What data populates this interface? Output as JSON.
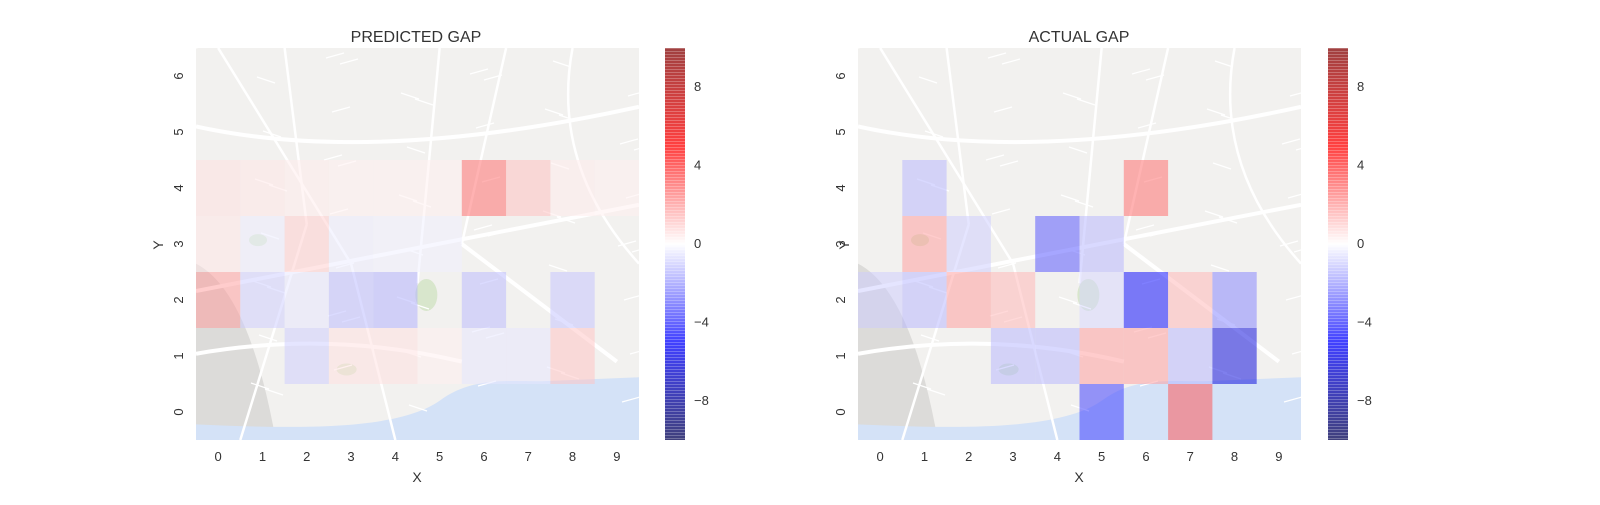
{
  "chart_data": [
    {
      "type": "heatmap",
      "title": "PREDICTED GAP",
      "xlabel": "X",
      "ylabel": "Y",
      "x_ticks": [
        "0",
        "1",
        "2",
        "3",
        "4",
        "5",
        "6",
        "7",
        "8",
        "9"
      ],
      "y_ticks": [
        "0",
        "1",
        "2",
        "3",
        "4",
        "5",
        "6"
      ],
      "xlim": [
        -0.5,
        9.5
      ],
      "ylim": [
        -0.5,
        6.5
      ],
      "colorbar": {
        "colormap": "seismic",
        "range": [
          -10,
          10
        ],
        "ticks": [
          8,
          4,
          0,
          -4,
          -8
        ],
        "tick_labels": [
          "8",
          "4",
          "0",
          "−4",
          "−8"
        ]
      },
      "background": "street map",
      "cells": [
        {
          "x": 0,
          "y": 4,
          "v": 0.6
        },
        {
          "x": 1,
          "y": 4,
          "v": 0.5
        },
        {
          "x": 2,
          "y": 4,
          "v": 0.4
        },
        {
          "x": 3,
          "y": 4,
          "v": 0.3
        },
        {
          "x": 4,
          "y": 4,
          "v": 0.3
        },
        {
          "x": 5,
          "y": 4,
          "v": 0.3
        },
        {
          "x": 6,
          "y": 4,
          "v": 3.0
        },
        {
          "x": 7,
          "y": 4,
          "v": 1.3
        },
        {
          "x": 8,
          "y": 4,
          "v": 0.4
        },
        {
          "x": 9,
          "y": 4,
          "v": 0.3
        },
        {
          "x": 0,
          "y": 3,
          "v": 0.5
        },
        {
          "x": 1,
          "y": 3,
          "v": -0.4
        },
        {
          "x": 2,
          "y": 3,
          "v": 1.0
        },
        {
          "x": 3,
          "y": 3,
          "v": -0.4
        },
        {
          "x": 4,
          "y": 3,
          "v": -0.3
        },
        {
          "x": 5,
          "y": 3,
          "v": -0.3
        },
        {
          "x": 0,
          "y": 2,
          "v": 2.0
        },
        {
          "x": 1,
          "y": 2,
          "v": -1.0
        },
        {
          "x": 2,
          "y": 2,
          "v": -0.5
        },
        {
          "x": 3,
          "y": 2,
          "v": -1.4
        },
        {
          "x": 4,
          "y": 2,
          "v": -1.6
        },
        {
          "x": 6,
          "y": 2,
          "v": -1.4
        },
        {
          "x": 8,
          "y": 2,
          "v": -1.2
        },
        {
          "x": 2,
          "y": 1,
          "v": -1.0
        },
        {
          "x": 3,
          "y": 1,
          "v": 0.6
        },
        {
          "x": 4,
          "y": 1,
          "v": 0.6
        },
        {
          "x": 5,
          "y": 1,
          "v": 0.3
        },
        {
          "x": 6,
          "y": 1,
          "v": -0.5
        },
        {
          "x": 7,
          "y": 1,
          "v": -0.5
        },
        {
          "x": 8,
          "y": 1,
          "v": 1.2
        }
      ]
    },
    {
      "type": "heatmap",
      "title": "ACTUAL GAP",
      "xlabel": "X",
      "ylabel": "Y",
      "x_ticks": [
        "0",
        "1",
        "2",
        "3",
        "4",
        "5",
        "6",
        "7",
        "8",
        "9"
      ],
      "y_ticks": [
        "0",
        "1",
        "2",
        "3",
        "4",
        "5",
        "6"
      ],
      "xlim": [
        -0.5,
        9.5
      ],
      "ylim": [
        -0.5,
        6.5
      ],
      "colorbar": {
        "colormap": "seismic",
        "range": [
          -10,
          10
        ],
        "ticks": [
          8,
          4,
          0,
          -4,
          -8
        ],
        "tick_labels": [
          "8",
          "4",
          "0",
          "−4",
          "−8"
        ]
      },
      "background": "street map",
      "cells": [
        {
          "x": 1,
          "y": 4,
          "v": -1.5
        },
        {
          "x": 6,
          "y": 4,
          "v": 3.0
        },
        {
          "x": 1,
          "y": 3,
          "v": 2.0
        },
        {
          "x": 2,
          "y": 3,
          "v": -1.0
        },
        {
          "x": 4,
          "y": 3,
          "v": -3.5
        },
        {
          "x": 5,
          "y": 3,
          "v": -1.5
        },
        {
          "x": 0,
          "y": 2,
          "v": -1.0
        },
        {
          "x": 1,
          "y": 2,
          "v": -1.5
        },
        {
          "x": 2,
          "y": 2,
          "v": 2.0
        },
        {
          "x": 3,
          "y": 2,
          "v": 1.5
        },
        {
          "x": 5,
          "y": 2,
          "v": -0.8
        },
        {
          "x": 6,
          "y": 2,
          "v": -5.0
        },
        {
          "x": 7,
          "y": 2,
          "v": 1.5
        },
        {
          "x": 8,
          "y": 2,
          "v": -2.5
        },
        {
          "x": 3,
          "y": 1,
          "v": -1.5
        },
        {
          "x": 4,
          "y": 1,
          "v": -1.5
        },
        {
          "x": 5,
          "y": 1,
          "v": 2.0
        },
        {
          "x": 6,
          "y": 1,
          "v": 2.0
        },
        {
          "x": 7,
          "y": 1,
          "v": -1.5
        },
        {
          "x": 8,
          "y": 1,
          "v": -6.0
        },
        {
          "x": 5,
          "y": 0,
          "v": -4.0
        },
        {
          "x": 7,
          "y": 0,
          "v": 3.5
        }
      ]
    }
  ]
}
